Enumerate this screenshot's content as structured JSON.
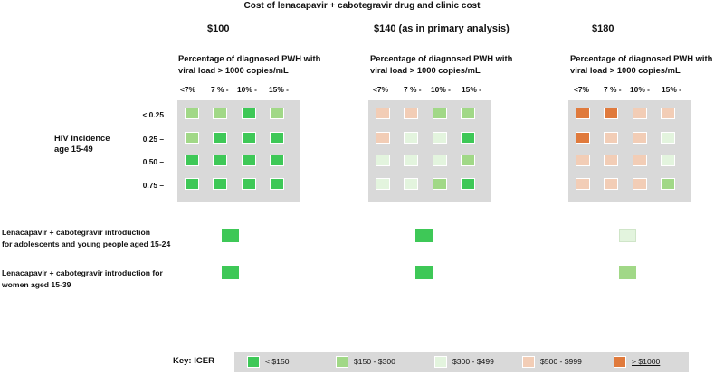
{
  "title": "Cost of lenacapavir + cabotegravir drug and clinic cost",
  "colors": {
    "g": "#3ec857",
    "lg": "#a1d887",
    "vl": "#e3f4de",
    "pk": "#f2cdb6",
    "or": "#e07a3c"
  },
  "panels": [
    {
      "price": "$100",
      "subhead_line1": "Percentage of diagnosed PWH with",
      "subhead_line2": "viral  load > 1000 copies/mL",
      "grid": [
        [
          "lg",
          "lg",
          "g",
          "lg"
        ],
        [
          "lg",
          "g",
          "g",
          "g"
        ],
        [
          "g",
          "g",
          "g",
          "g"
        ],
        [
          "g",
          "g",
          "g",
          "g"
        ]
      ],
      "ayp": "g",
      "women": "g"
    },
    {
      "price": "$140 (as in primary analysis)",
      "subhead_line1": "Percentage of diagnosed PWH with",
      "subhead_line2": "viral  load > 1000 copies/mL",
      "grid": [
        [
          "pk",
          "pk",
          "lg",
          "lg"
        ],
        [
          "pk",
          "vl",
          "vl",
          "g"
        ],
        [
          "vl",
          "vl",
          "vl",
          "lg"
        ],
        [
          "vl",
          "vl",
          "lg",
          "g"
        ]
      ],
      "ayp": "g",
      "women": "g"
    },
    {
      "price": "$180",
      "subhead_line1": "Percentage of diagnosed PWH with",
      "subhead_line2": "viral  load > 1000 copies/mL",
      "grid": [
        [
          "or",
          "or",
          "pk",
          "pk"
        ],
        [
          "or",
          "pk",
          "pk",
          "vl"
        ],
        [
          "pk",
          "pk",
          "pk",
          "vl"
        ],
        [
          "pk",
          "pk",
          "pk",
          "lg"
        ]
      ],
      "ayp": "vl",
      "women": "lg"
    }
  ],
  "ticks": [
    "<7%",
    "7 % -",
    "10% -",
    "15% -"
  ],
  "incidence_rows": [
    "< 0.25",
    "0.25 –",
    "0.50 –",
    "0.75 –"
  ],
  "hiv_label_line1": "HIV Incidence",
  "hiv_label_line2": "age 15-49",
  "intro_ayp_line1": "Lenacapavir + cabotegravir  introduction",
  "intro_ayp_line2": "for adolescents and young people aged 15-24",
  "intro_women_line1": "Lenacapavir + cabotegravir  introduction for",
  "intro_women_line2": "women aged 15-39",
  "key": {
    "title": "Key: ICER",
    "items": [
      {
        "label": "< $150",
        "color": "g"
      },
      {
        "label": "$150 - $300",
        "color": "lg"
      },
      {
        "label": "$300 - $499",
        "color": "vl"
      },
      {
        "label": "$500 - $999",
        "color": "pk"
      },
      {
        "label": "> $1000",
        "color": "or"
      }
    ]
  }
}
